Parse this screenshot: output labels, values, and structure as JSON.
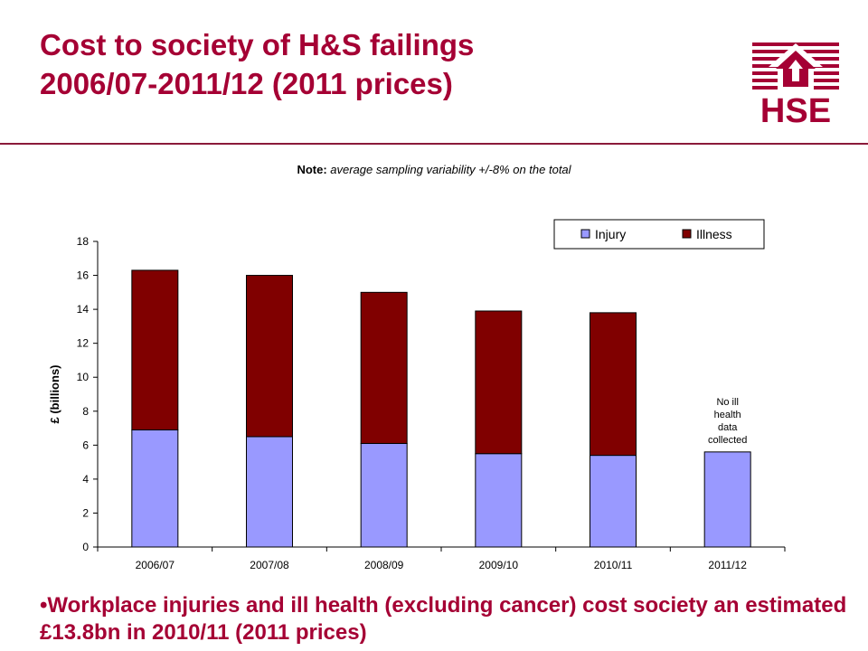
{
  "slide": {
    "title_line1": "Cost to society of H&S failings",
    "title_line2": "2006/07-2011/12 (2011 prices)",
    "note_label": "Note:",
    "note_text": " average sampling variability +/-8% on the total",
    "bullet": "•Workplace injuries and ill health (excluding cancer) cost society an estimated £13.8bn in 2010/11 (2011 prices)"
  },
  "logo": {
    "text": "HSE",
    "color": "#a50034"
  },
  "chart_data": {
    "type": "bar",
    "stacked": true,
    "categories": [
      "2006/07",
      "2007/08",
      "2008/09",
      "2009/10",
      "2010/11",
      "2011/12"
    ],
    "series": [
      {
        "name": "Injury",
        "color": "#9999ff",
        "values": [
          6.9,
          6.5,
          6.1,
          5.5,
          5.4,
          5.6
        ]
      },
      {
        "name": "Illness",
        "color": "#800000",
        "values": [
          9.4,
          9.5,
          8.9,
          8.4,
          8.4,
          0
        ]
      }
    ],
    "ylabel": "£ (billions)",
    "ylim": [
      0,
      18
    ],
    "yticks": [
      0,
      2,
      4,
      6,
      8,
      10,
      12,
      14,
      16,
      18
    ],
    "legend_position": "top-right",
    "annotation": {
      "category": "2011/12",
      "lines": [
        "No ill",
        "health",
        "data",
        "collected"
      ]
    }
  }
}
